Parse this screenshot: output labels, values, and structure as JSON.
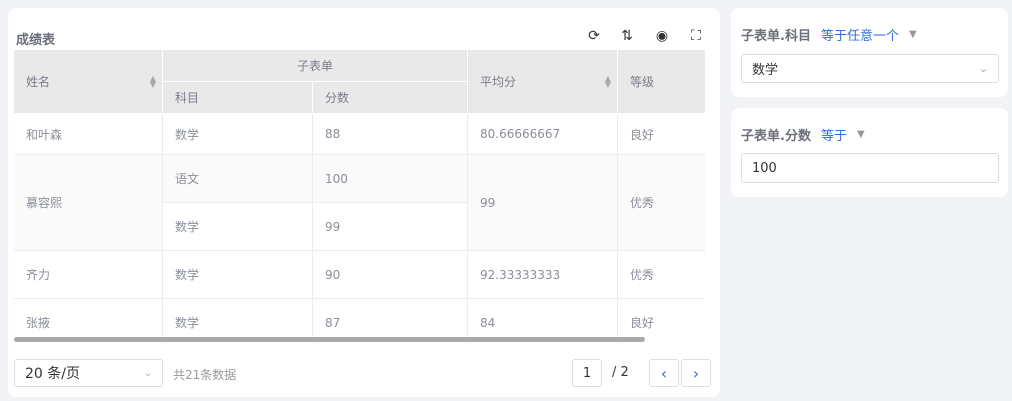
{
  "table_card": {
    "title": "成绩表",
    "tools": [
      "refresh-icon",
      "sort-icon",
      "eye-icon",
      "fullscreen-icon"
    ]
  },
  "table": {
    "headers": {
      "name": "姓名",
      "group": "子表单",
      "subject": "科目",
      "score": "分数",
      "avg": "平均分",
      "grade": "等级"
    },
    "rows": [
      {
        "name": "和叶森",
        "sub": [
          {
            "subject": "数学",
            "score": "88"
          }
        ],
        "avg": "80.66666667",
        "grade": "良好"
      },
      {
        "name": "慕容熙",
        "sub": [
          {
            "subject": "语文",
            "score": "100"
          },
          {
            "subject": "数学",
            "score": "99"
          }
        ],
        "avg": "99",
        "grade": "优秀"
      },
      {
        "name": "齐力",
        "sub": [
          {
            "subject": "数学",
            "score": "90"
          }
        ],
        "avg": "92.33333333",
        "grade": "优秀"
      },
      {
        "name": "张掖",
        "sub": [
          {
            "subject": "数学",
            "score": "87"
          }
        ],
        "avg": "84",
        "grade": "良好"
      }
    ]
  },
  "pagination": {
    "page_size": "20 条/页",
    "total": "共21条数据",
    "current": "1",
    "total_pages": "/ 2"
  },
  "filters": [
    {
      "label": "子表单.科目",
      "operator": "等于任意一个",
      "value": "数学"
    },
    {
      "label": "子表单.分数",
      "operator": "等于",
      "value": "100"
    }
  ],
  "colors": {
    "accent": "#2f6fd6",
    "header_bg": "#e9e9e9",
    "page_bg": "#f2f3f7"
  }
}
